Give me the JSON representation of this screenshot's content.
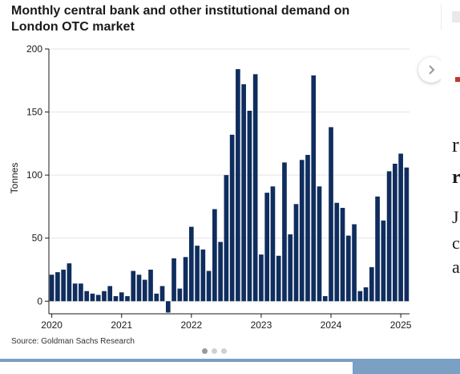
{
  "title": "Monthly central bank and other institutional demand on London OTC market",
  "source": "Source: Goldman Sachs Research",
  "chart_data": {
    "type": "bar",
    "ylabel": "Tonnes",
    "xlabel": "",
    "ylim": [
      -10,
      200
    ],
    "yticks": [
      0,
      50,
      100,
      150,
      200
    ],
    "xticks": [
      {
        "label": "2020",
        "index": 0
      },
      {
        "label": "2021",
        "index": 12
      },
      {
        "label": "2022",
        "index": 24
      },
      {
        "label": "2023",
        "index": 36
      },
      {
        "label": "2024",
        "index": 48
      },
      {
        "label": "2025",
        "index": 60
      }
    ],
    "bar_color": "#0f2d5e",
    "values": [
      21,
      23,
      25,
      30,
      14,
      14,
      8,
      6,
      5,
      8,
      12,
      4,
      7,
      4,
      24,
      21,
      17,
      25,
      6,
      12,
      -9,
      34,
      10,
      35,
      59,
      44,
      41,
      24,
      73,
      47,
      100,
      132,
      184,
      172,
      151,
      180,
      37,
      86,
      91,
      36,
      110,
      53,
      77,
      112,
      116,
      179,
      91,
      4,
      138,
      78,
      74,
      52,
      61,
      8,
      11,
      27,
      83,
      64,
      103,
      109,
      117,
      106
    ]
  },
  "carousel": {
    "dots": 3,
    "active_dot": 0
  },
  "edge_text": [
    "r",
    "r",
    "J",
    "c",
    "a"
  ],
  "colors": {
    "bottom_bar": "#7aa0c4"
  }
}
